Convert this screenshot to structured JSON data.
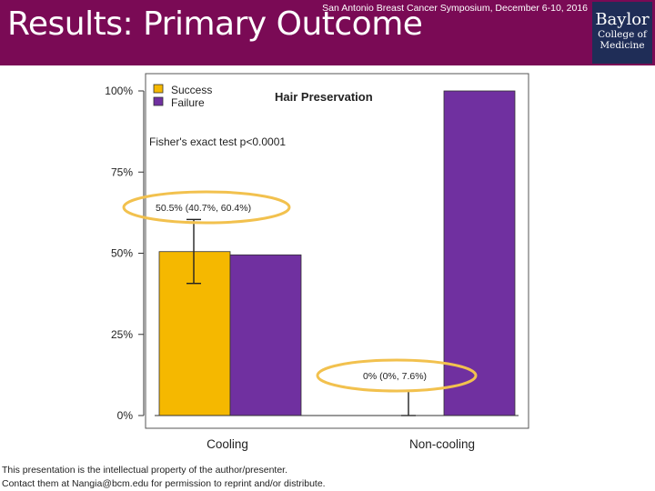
{
  "slide": {
    "title": "Results: Primary Outcome",
    "conference": "San Antonio Breast Cancer Symposium, December 6-10, 2016",
    "logo": {
      "line1": "Baylor",
      "line2": "College of",
      "line3": "Medicine"
    },
    "footer_line1": "This presentation is the intellectual property of the author/presenter.",
    "footer_line2": "Contact them at Nangia@bcm.edu for permission to reprint and/or distribute."
  },
  "colors": {
    "banner": "#7a0a55",
    "success": "#f5b800",
    "failure": "#7030a0",
    "highlight": "#f2c14e"
  },
  "chart_data": {
    "type": "bar",
    "title": "Hair Preservation",
    "subtitle": "Fisher's exact test p<0.0001",
    "categories": [
      "Cooling",
      "Non-cooling"
    ],
    "series": [
      {
        "name": "Success",
        "color": "#f5b800",
        "values": [
          50.5,
          0
        ]
      },
      {
        "name": "Failure",
        "color": "#7030a0",
        "values": [
          49.5,
          100
        ]
      }
    ],
    "error_bars": [
      {
        "category": "Cooling",
        "series": "Success",
        "low": 40.7,
        "high": 60.4
      },
      {
        "category": "Non-cooling",
        "series": "Success",
        "low": 0,
        "high": 7.6
      }
    ],
    "annotations": [
      "50.5% (40.7%, 60.4%)",
      "0% (0%, 7.6%)"
    ],
    "yticks": [
      "0%",
      "25%",
      "50%",
      "75%",
      "100%"
    ],
    "ylim": [
      0,
      100
    ],
    "legend": [
      "Success",
      "Failure"
    ],
    "legend_position": "top-left"
  }
}
